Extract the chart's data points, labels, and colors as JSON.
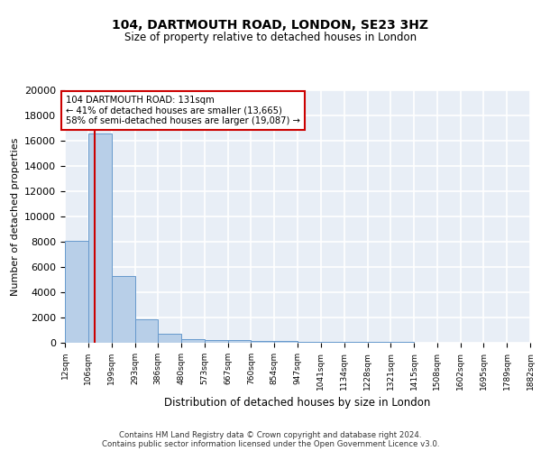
{
  "title1": "104, DARTMOUTH ROAD, LONDON, SE23 3HZ",
  "title2": "Size of property relative to detached houses in London",
  "xlabel": "Distribution of detached houses by size in London",
  "ylabel": "Number of detached properties",
  "bin_edges": [
    12,
    106,
    199,
    293,
    386,
    480,
    573,
    667,
    760,
    854,
    947,
    1041,
    1134,
    1228,
    1321,
    1415,
    1508,
    1602,
    1695,
    1789,
    1882
  ],
  "bar_heights": [
    8100,
    16600,
    5300,
    1850,
    700,
    300,
    220,
    200,
    175,
    150,
    100,
    80,
    60,
    50,
    40,
    30,
    25,
    20,
    15,
    10
  ],
  "bar_color": "#b8cfe8",
  "bar_edge_color": "#6699cc",
  "bg_color": "#e8eef6",
  "grid_color": "#ffffff",
  "red_line_x": 131,
  "annotation_text": "104 DARTMOUTH ROAD: 131sqm\n← 41% of detached houses are smaller (13,665)\n58% of semi-detached houses are larger (19,087) →",
  "annotation_box_color": "#ffffff",
  "annotation_border_color": "#cc0000",
  "ylim": [
    0,
    20000
  ],
  "yticks": [
    0,
    2000,
    4000,
    6000,
    8000,
    10000,
    12000,
    14000,
    16000,
    18000,
    20000
  ],
  "footer": "Contains HM Land Registry data © Crown copyright and database right 2024.\nContains public sector information licensed under the Open Government Licence v3.0.",
  "tick_labels": [
    "12sqm",
    "106sqm",
    "199sqm",
    "293sqm",
    "386sqm",
    "480sqm",
    "573sqm",
    "667sqm",
    "760sqm",
    "854sqm",
    "947sqm",
    "1041sqm",
    "1134sqm",
    "1228sqm",
    "1321sqm",
    "1415sqm",
    "1508sqm",
    "1602sqm",
    "1695sqm",
    "1789sqm",
    "1882sqm"
  ]
}
